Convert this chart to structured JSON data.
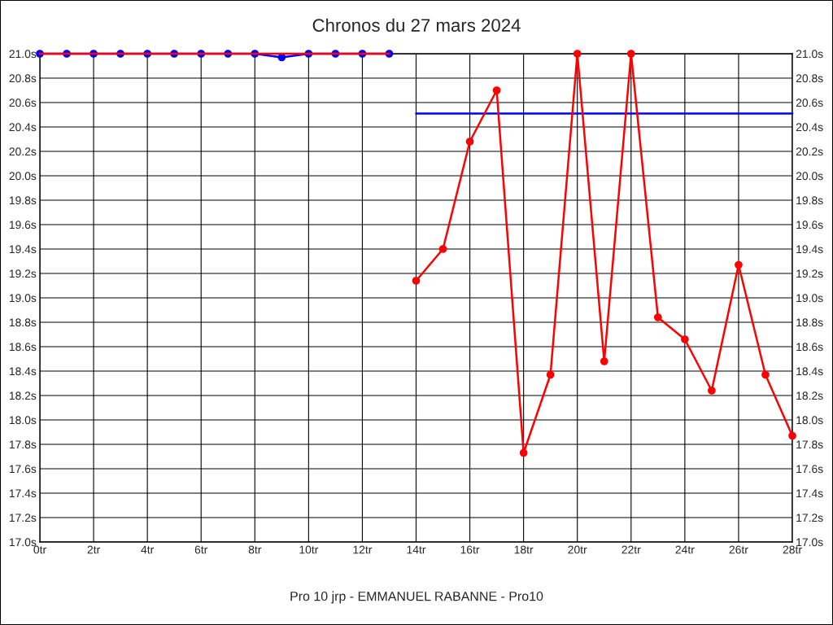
{
  "chart_data": {
    "type": "line",
    "title": "Chronos du 27 mars 2024",
    "annotations": [
      "Pro 10 jrp - EMMANUEL RABANNE - Pro10"
    ],
    "series": [
      {
        "color": "#0000ff",
        "x": [
          0,
          1,
          2,
          3,
          4,
          5,
          6,
          7,
          8,
          9,
          10,
          11,
          12,
          13
        ],
        "values": [
          21.0,
          21.0,
          21.0,
          21.0,
          21.0,
          21.0,
          21.0,
          21.0,
          21.0,
          20.97,
          21.0,
          21.0,
          21.0,
          21.0
        ],
        "marker": "circle"
      },
      {
        "color": "#0000ff",
        "x": [
          14,
          28
        ],
        "values": [
          20.51,
          20.51
        ],
        "marker": "none"
      },
      {
        "color": "#ff0000",
        "x": [
          0,
          1,
          2,
          3,
          4,
          5,
          6,
          7,
          8,
          9,
          10,
          11,
          12,
          13
        ],
        "values": [
          21.0,
          21.0,
          21.0,
          21.0,
          21.0,
          21.0,
          21.0,
          21.0,
          21.0,
          21.0,
          21.0,
          21.0,
          21.0,
          21.0
        ],
        "marker": "none"
      },
      {
        "color": "#ff0000",
        "x": [
          14,
          15,
          16,
          17,
          18,
          19,
          20,
          21,
          22,
          23,
          24,
          25,
          26,
          27,
          28
        ],
        "values": [
          19.14,
          19.4,
          20.28,
          20.7,
          17.73,
          18.37,
          21.0,
          18.48,
          21.0,
          18.84,
          18.66,
          18.24,
          19.27,
          18.37,
          17.87
        ],
        "marker": "circle"
      }
    ],
    "xlim": [
      0,
      28
    ],
    "xticks": [
      {
        "value": 0,
        "label": "0tr"
      },
      {
        "value": 2,
        "label": "2tr"
      },
      {
        "value": 4,
        "label": "4tr"
      },
      {
        "value": 6,
        "label": "6tr"
      },
      {
        "value": 8,
        "label": "8tr"
      },
      {
        "value": 10,
        "label": "10tr"
      },
      {
        "value": 12,
        "label": "12tr"
      },
      {
        "value": 14,
        "label": "14tr"
      },
      {
        "value": 16,
        "label": "16tr"
      },
      {
        "value": 18,
        "label": "18tr"
      },
      {
        "value": 20,
        "label": "20tr"
      },
      {
        "value": 22,
        "label": "22tr"
      },
      {
        "value": 24,
        "label": "24tr"
      },
      {
        "value": 26,
        "label": "26tr"
      },
      {
        "value": 28,
        "label": "28tr"
      }
    ],
    "ylim": [
      17.0,
      21.0
    ],
    "yticks": [
      {
        "value": 17.0,
        "label": "17.0s"
      },
      {
        "value": 17.2,
        "label": "17.2s"
      },
      {
        "value": 17.4,
        "label": "17.4s"
      },
      {
        "value": 17.6,
        "label": "17.6s"
      },
      {
        "value": 17.8,
        "label": "17.8s"
      },
      {
        "value": 18.0,
        "label": "18.0s"
      },
      {
        "value": 18.2,
        "label": "18.2s"
      },
      {
        "value": 18.4,
        "label": "18.4s"
      },
      {
        "value": 18.6,
        "label": "18.6s"
      },
      {
        "value": 18.8,
        "label": "18.8s"
      },
      {
        "value": 19.0,
        "label": "19.0s"
      },
      {
        "value": 19.2,
        "label": "19.2s"
      },
      {
        "value": 19.4,
        "label": "19.4s"
      },
      {
        "value": 19.6,
        "label": "19.6s"
      },
      {
        "value": 19.8,
        "label": "19.8s"
      },
      {
        "value": 20.0,
        "label": "20.0s"
      },
      {
        "value": 20.2,
        "label": "20.2s"
      },
      {
        "value": 20.4,
        "label": "20.4s"
      },
      {
        "value": 20.6,
        "label": "20.6s"
      },
      {
        "value": 20.8,
        "label": "20.8s"
      },
      {
        "value": 21.0,
        "label": "21.0s"
      }
    ],
    "y2lim": [
      17.0,
      21.0
    ],
    "y2ticks": [
      {
        "value": 17.0,
        "label": "17.0s"
      },
      {
        "value": 17.2,
        "label": "17.2s"
      },
      {
        "value": 17.4,
        "label": "17.4s"
      },
      {
        "value": 17.6,
        "label": "17.6s"
      },
      {
        "value": 17.8,
        "label": "17.8s"
      },
      {
        "value": 18.0,
        "label": "18.0s"
      },
      {
        "value": 18.2,
        "label": "18.2s"
      },
      {
        "value": 18.4,
        "label": "18.4s"
      },
      {
        "value": 18.6,
        "label": "18.6s"
      },
      {
        "value": 18.8,
        "label": "18.8s"
      },
      {
        "value": 19.0,
        "label": "19.0s"
      },
      {
        "value": 19.2,
        "label": "19.2s"
      },
      {
        "value": 19.4,
        "label": "19.4s"
      },
      {
        "value": 19.6,
        "label": "19.6s"
      },
      {
        "value": 19.8,
        "label": "19.8s"
      },
      {
        "value": 20.0,
        "label": "20.0s"
      },
      {
        "value": 20.2,
        "label": "20.2s"
      },
      {
        "value": 20.4,
        "label": "20.4s"
      },
      {
        "value": 20.6,
        "label": "20.6s"
      },
      {
        "value": 20.8,
        "label": "20.8s"
      },
      {
        "value": 21.0,
        "label": "21.0s"
      }
    ],
    "grid": true
  }
}
